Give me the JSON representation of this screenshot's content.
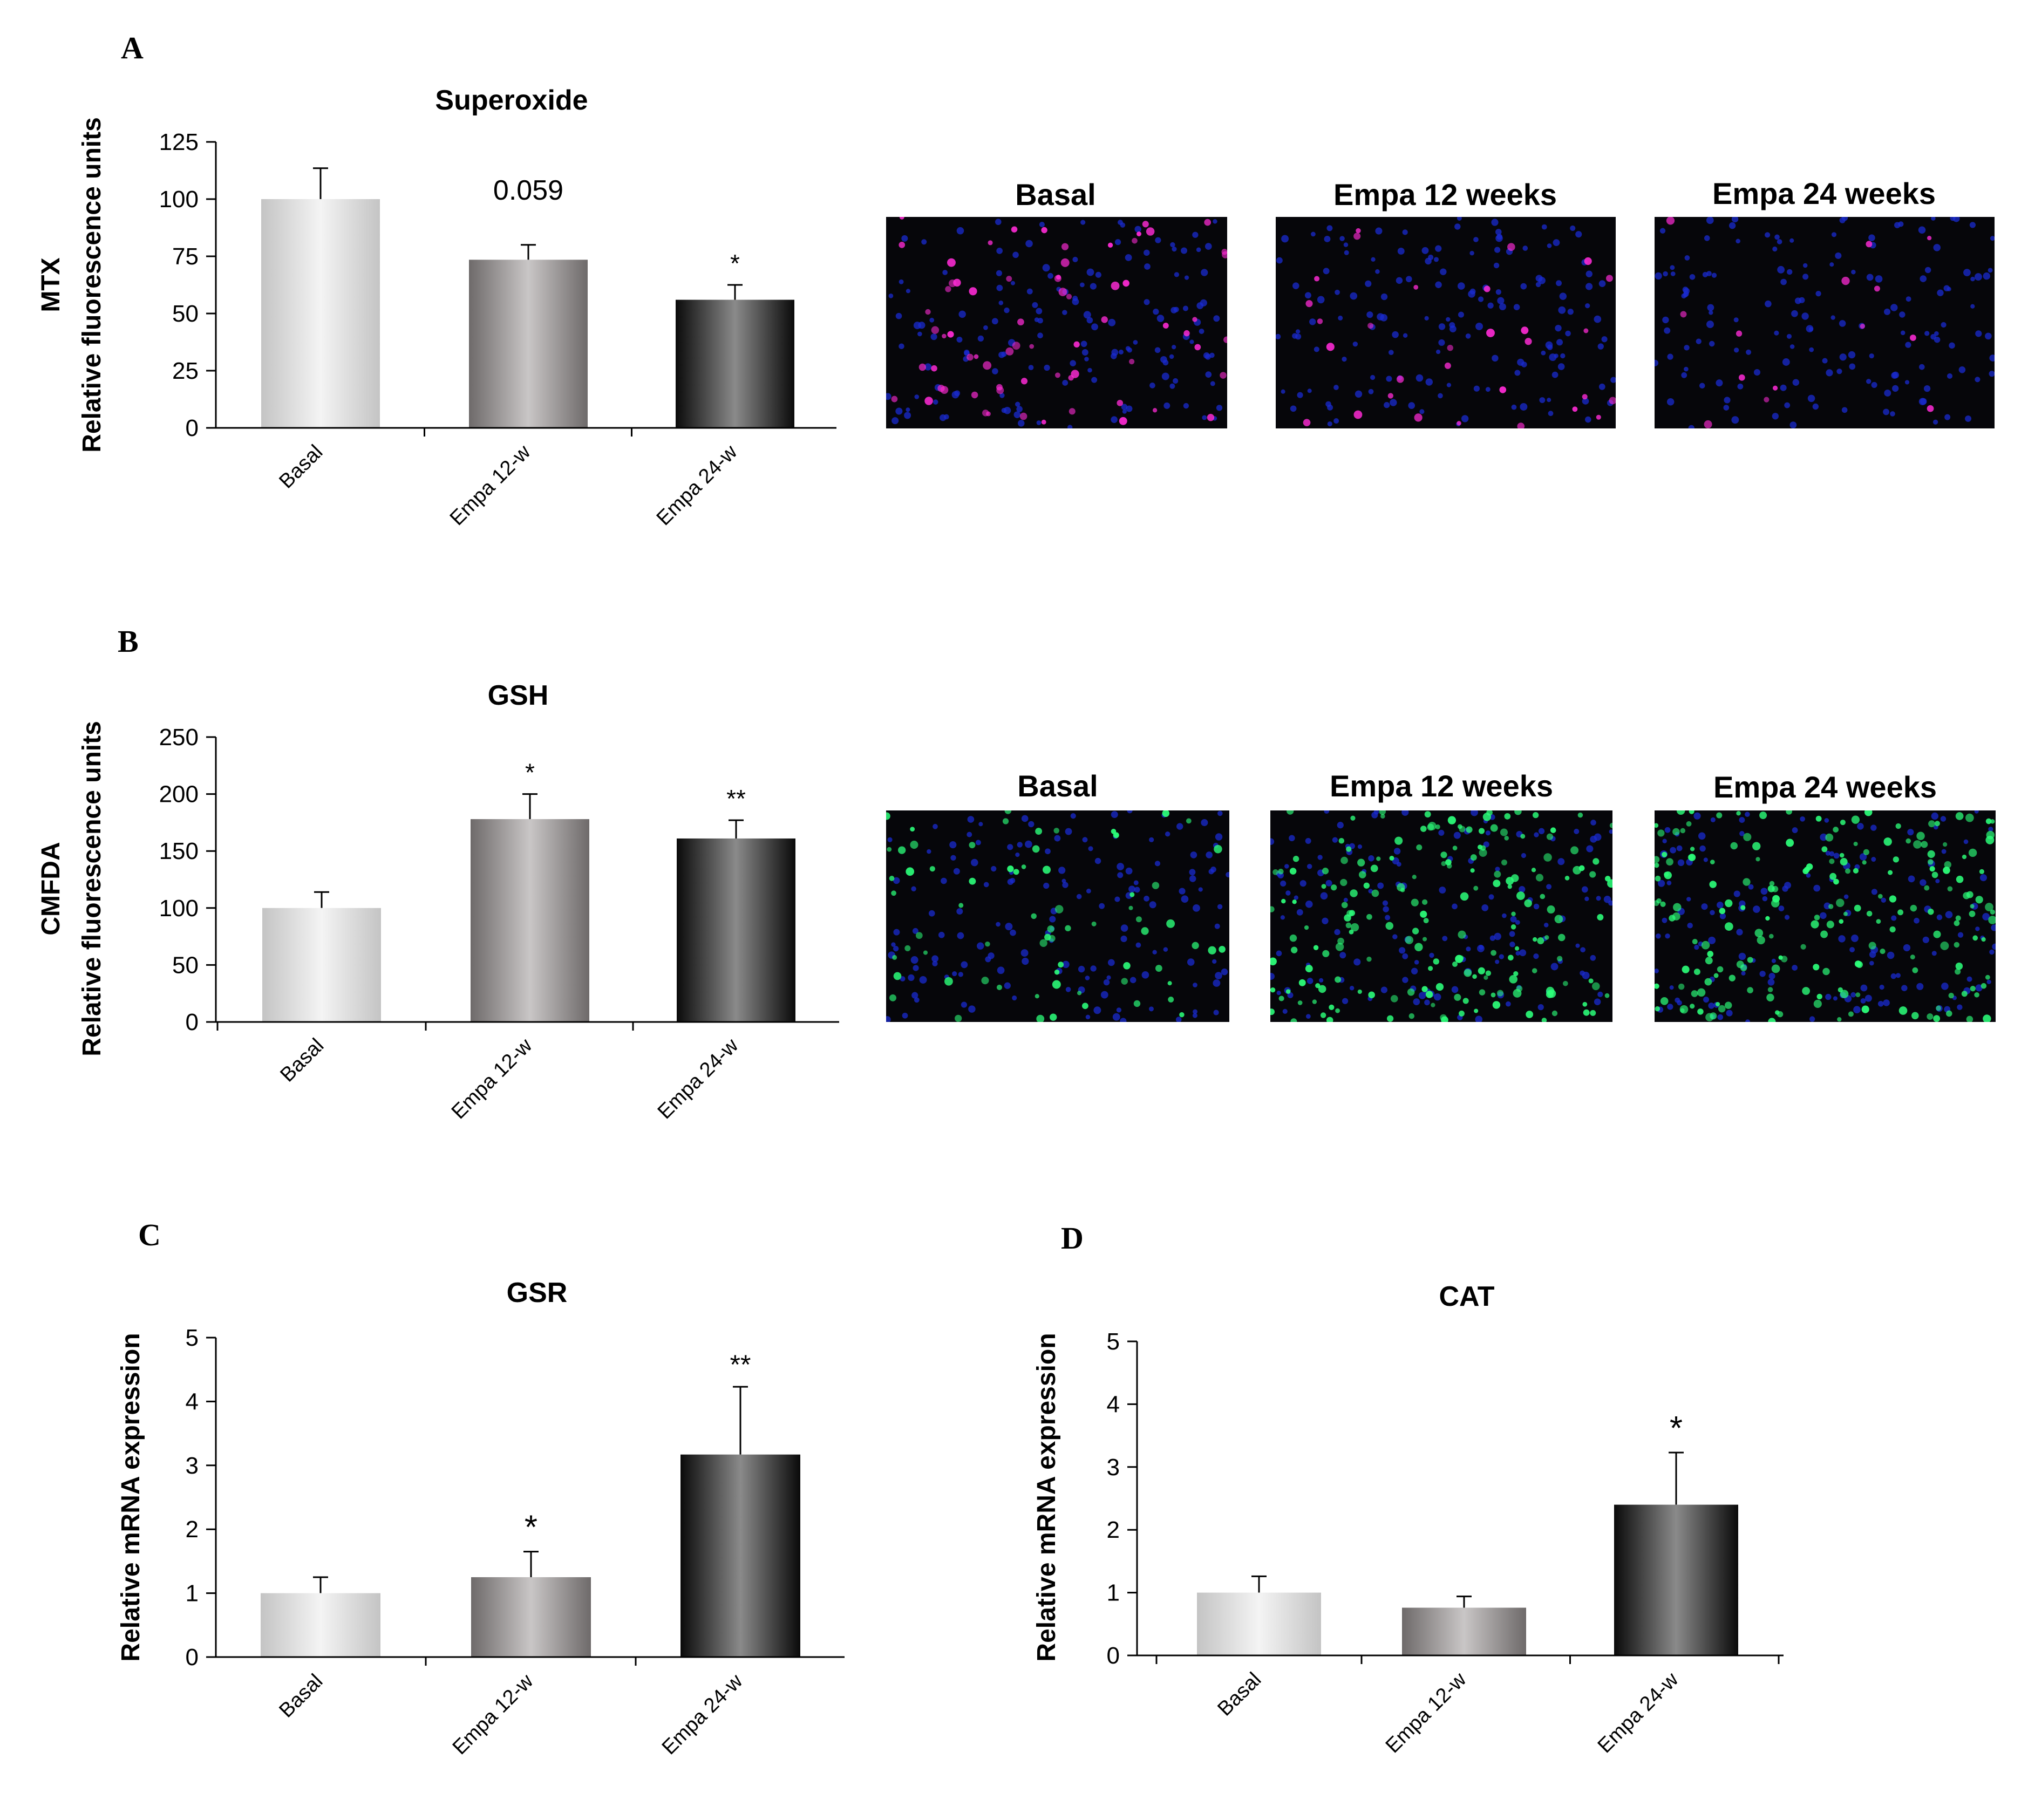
{
  "panels": {
    "A": {
      "letter": "A",
      "chart_data": {
        "type": "bar",
        "title": "Superoxide",
        "ylabel_line1": "MTX",
        "ylabel_line2": "Relative fluorescence units",
        "xlabel": "",
        "categories": [
          "Basal",
          "Empa 12-w",
          "Empa 24-w"
        ],
        "values": [
          100,
          73.5,
          56
        ],
        "errors": [
          13.5,
          6.5,
          6.5
        ],
        "significance": [
          "",
          "0.059",
          "*"
        ],
        "ylim": [
          0,
          125
        ],
        "yticks": [
          0,
          25,
          50,
          75,
          100,
          125
        ],
        "grid": false
      },
      "images": [
        {
          "label": "Basal",
          "stain": "magenta"
        },
        {
          "label": "Empa 12 weeks",
          "stain": "magenta"
        },
        {
          "label": "Empa 24 weeks",
          "stain": "magenta"
        }
      ]
    },
    "B": {
      "letter": "B",
      "chart_data": {
        "type": "bar",
        "title": "GSH",
        "ylabel_line1": "CMFDA",
        "ylabel_line2": "Relative fluorescence units",
        "xlabel": "",
        "categories": [
          "Basal",
          "Empa 12-w",
          "Empa 24-w"
        ],
        "values": [
          100,
          178,
          161
        ],
        "errors": [
          14,
          22,
          16
        ],
        "significance": [
          "",
          "*",
          "**"
        ],
        "ylim": [
          0,
          250
        ],
        "yticks": [
          0,
          50,
          100,
          150,
          200,
          250
        ],
        "grid": false
      },
      "images": [
        {
          "label": "Basal",
          "stain": "green"
        },
        {
          "label": "Empa 12 weeks",
          "stain": "green"
        },
        {
          "label": "Empa 24 weeks",
          "stain": "green"
        }
      ]
    },
    "C": {
      "letter": "C",
      "chart_data": {
        "type": "bar",
        "title": "GSR",
        "ylabel_line1": "",
        "ylabel_line2": "Relative mRNA expression",
        "xlabel": "",
        "categories": [
          "Basal",
          "Empa 12-w",
          "Empa 24-w"
        ],
        "values": [
          1.0,
          1.25,
          3.17
        ],
        "errors": [
          0.25,
          0.4,
          1.06
        ],
        "significance": [
          "",
          "*",
          "**"
        ],
        "ylim": [
          0,
          5
        ],
        "yticks": [
          0,
          1,
          2,
          3,
          4,
          5
        ],
        "grid": false
      }
    },
    "D": {
      "letter": "D",
      "chart_data": {
        "type": "bar",
        "title": "CAT",
        "ylabel_line1": "",
        "ylabel_line2": "Relative mRNA expression",
        "xlabel": "",
        "categories": [
          "Basal",
          "Empa 12-w",
          "Empa 24-w"
        ],
        "values": [
          1.0,
          0.76,
          2.4
        ],
        "errors": [
          0.26,
          0.18,
          0.83
        ],
        "significance": [
          "",
          "",
          "*"
        ],
        "ylim": [
          0,
          5
        ],
        "yticks": [
          0,
          1,
          2,
          3,
          4,
          5
        ],
        "grid": false
      }
    }
  },
  "bar_gradients": [
    [
      "#c4c4c4",
      "#f4f4f4",
      "#c4c4c4"
    ],
    [
      "#6e6a6a",
      "#c9c6c6",
      "#6e6a6a"
    ],
    [
      "#0a0a0a",
      "#8a8a8a",
      "#0a0a0a"
    ]
  ],
  "colors": {
    "axis": "#000000",
    "micro_background": "#06060a",
    "nuclei_blue": "#1a2bd0",
    "stain_magenta": "#ff2bd6",
    "stain_green": "#2cff7a"
  }
}
